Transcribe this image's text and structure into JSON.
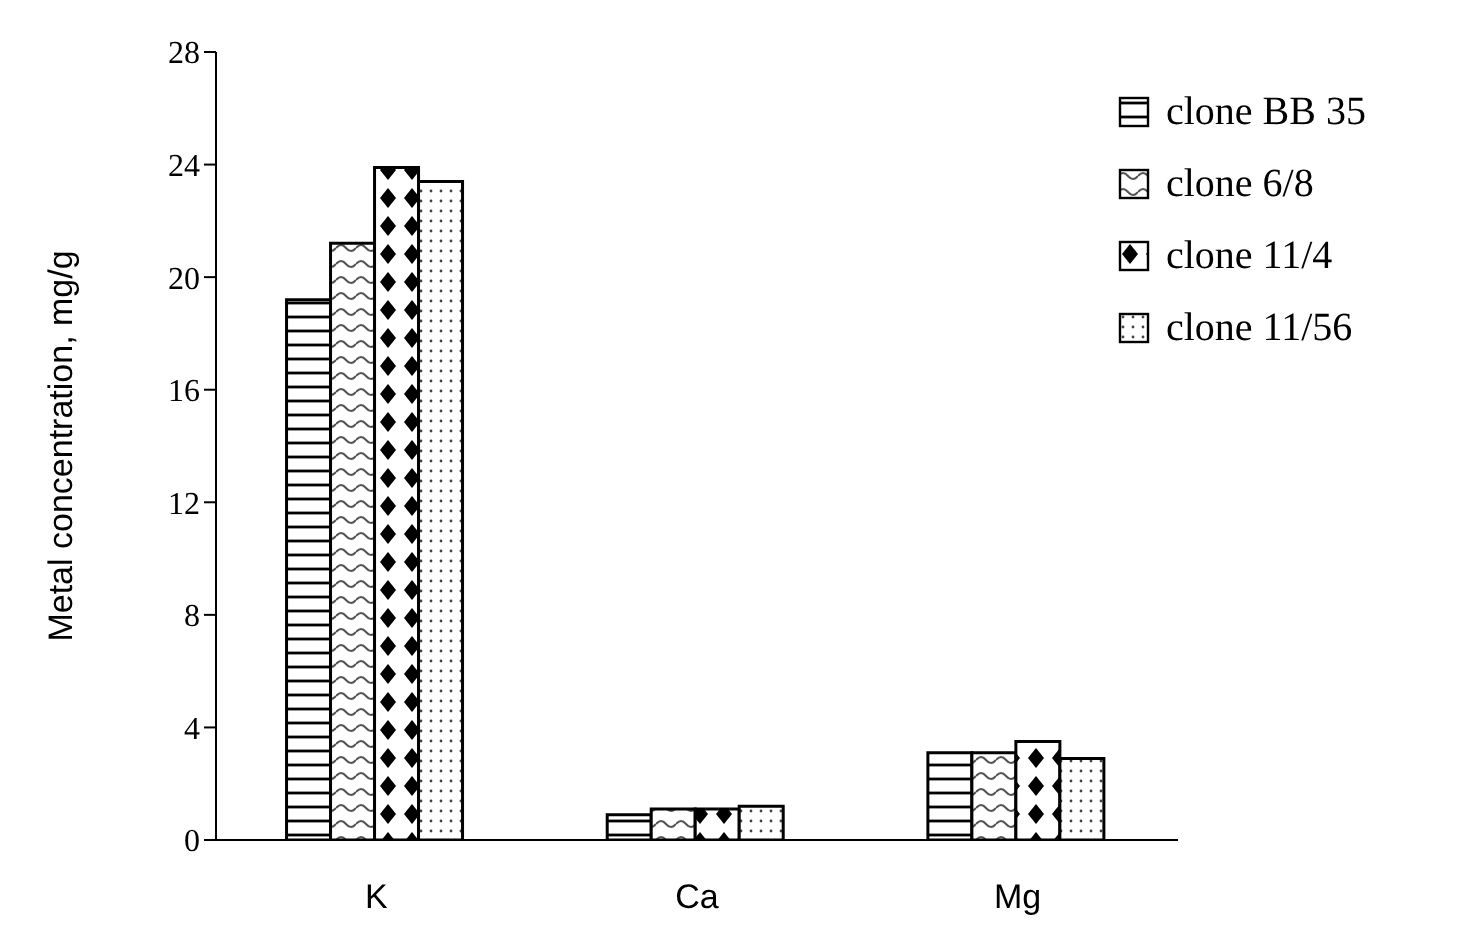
{
  "chart_data": {
    "type": "bar",
    "ylabel": "Metal concentration, mg/g",
    "categories": [
      "K",
      "Ca",
      "Mg"
    ],
    "series": [
      {
        "name": "clone BB 35",
        "color": "#000000",
        "values": [
          19.2,
          0.9,
          3.1
        ]
      },
      {
        "name": "clone 6/8",
        "color": "#000000",
        "values": [
          21.2,
          1.1,
          3.1
        ]
      },
      {
        "name": "clone 11/4",
        "color": "#000000",
        "values": [
          23.9,
          1.1,
          3.5
        ]
      },
      {
        "name": "clone 11/56",
        "color": "#000000",
        "values": [
          23.4,
          1.2,
          2.9
        ]
      }
    ],
    "ylim": [
      0,
      28
    ],
    "yticks": [
      0,
      4,
      8,
      12,
      16,
      20,
      24,
      28
    ],
    "grid": false,
    "legend": "top right"
  }
}
